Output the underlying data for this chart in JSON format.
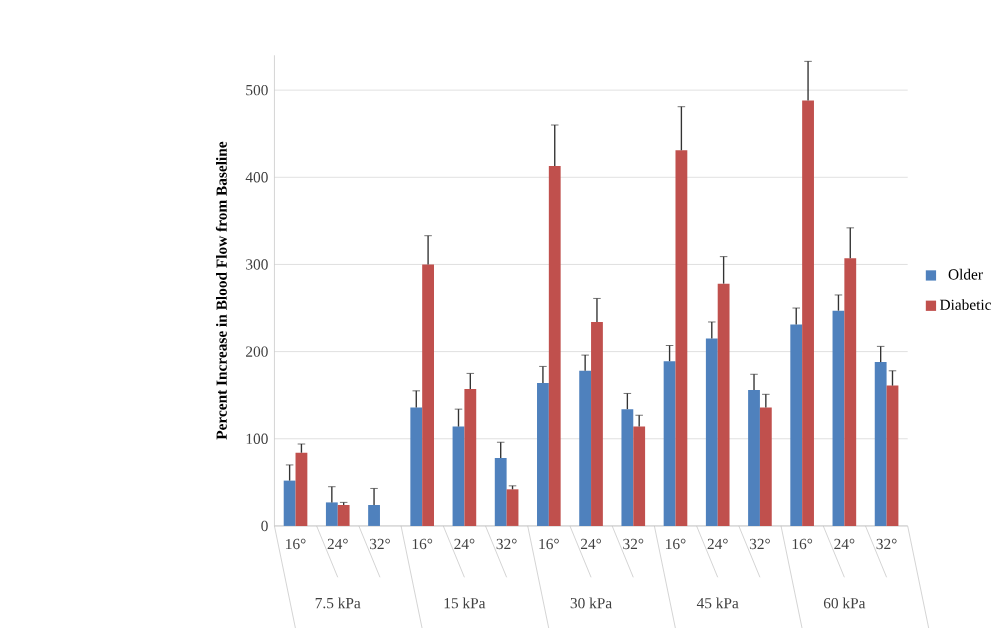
{
  "chart_data": {
    "type": "bar",
    "ylabel": "Percent Increase in Blood Flow from Baseline",
    "categories": [
      "16°",
      "24°",
      "32°",
      "16°",
      "24°",
      "32°",
      "16°",
      "24°",
      "32°",
      "16°",
      "24°",
      "32°",
      "16°",
      "24°",
      "32°"
    ],
    "annotations": [
      "7.5 kPa",
      "15 kPa",
      "30 kPa",
      "45 kPa",
      "60 kPa"
    ],
    "series": [
      {
        "name": "Older",
        "color": "#4f81bd",
        "values": [
          52,
          27,
          24,
          136,
          114,
          78,
          164,
          178,
          134,
          189,
          215,
          156,
          231,
          247,
          188
        ],
        "errors": [
          18,
          18,
          19,
          19,
          20,
          18,
          19,
          18,
          18,
          18,
          19,
          18,
          19,
          18,
          18
        ]
      },
      {
        "name": "Diabetic",
        "color": "#c0504d",
        "values": [
          84,
          24,
          null,
          300,
          157,
          42,
          413,
          234,
          114,
          431,
          278,
          136,
          488,
          307,
          161
        ],
        "errors": [
          10,
          3,
          null,
          33,
          18,
          4,
          47,
          27,
          13,
          50,
          31,
          15,
          45,
          35,
          17
        ]
      }
    ],
    "ylim": [
      0,
      540
    ],
    "yticks": [
      0,
      100,
      200,
      300,
      400,
      500
    ],
    "grid": "y",
    "legend": "right"
  }
}
